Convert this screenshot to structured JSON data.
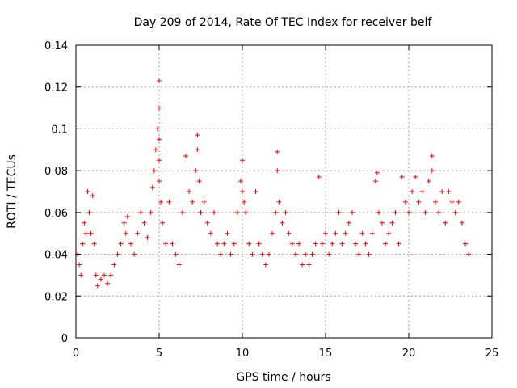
{
  "chart_data": {
    "type": "scatter",
    "title": "Day 209 of 2014, Rate Of TEC Index for receiver belf",
    "xlabel": "GPS time / hours",
    "ylabel": "ROTI / TECUs",
    "xlim": [
      0,
      25
    ],
    "ylim": [
      0,
      0.14
    ],
    "xticks": [
      0,
      5,
      10,
      15,
      20,
      25
    ],
    "yticks": [
      0,
      0.02,
      0.04,
      0.06,
      0.08,
      0.1,
      0.12,
      0.14
    ],
    "xtick_labels": [
      "0",
      "5",
      "10",
      "15",
      "20",
      "25"
    ],
    "ytick_labels": [
      "0",
      "0.02",
      "0.04",
      "0.06",
      "0.08",
      "0.1",
      "0.12",
      "0.14"
    ],
    "grid": true,
    "marker": "+",
    "color": "#ff0000",
    "series": [
      {
        "name": "ROTI",
        "x": [
          0.1,
          0.2,
          0.3,
          0.4,
          0.5,
          0.6,
          0.7,
          0.8,
          0.9,
          1.0,
          1.1,
          1.2,
          1.3,
          1.5,
          1.7,
          1.9,
          2.1,
          2.3,
          2.5,
          2.7,
          2.9,
          3.0,
          3.1,
          3.3,
          3.5,
          3.7,
          3.9,
          4.1,
          4.3,
          4.5,
          4.6,
          4.7,
          4.8,
          4.9,
          5.0,
          5.0,
          5.0,
          5.0,
          5.0,
          5.1,
          5.2,
          5.4,
          5.6,
          5.8,
          6.0,
          6.2,
          6.4,
          6.6,
          6.8,
          7.0,
          7.2,
          7.3,
          7.3,
          7.4,
          7.5,
          7.7,
          7.9,
          8.1,
          8.3,
          8.5,
          8.7,
          8.9,
          9.1,
          9.3,
          9.5,
          9.7,
          9.9,
          10.0,
          10.0,
          10.1,
          10.2,
          10.4,
          10.6,
          10.8,
          11.0,
          11.2,
          11.4,
          11.6,
          11.8,
          12.0,
          12.1,
          12.1,
          12.2,
          12.4,
          12.6,
          12.8,
          13.0,
          13.2,
          13.4,
          13.6,
          13.8,
          14.0,
          14.2,
          14.4,
          14.6,
          14.8,
          15.0,
          15.2,
          15.4,
          15.6,
          15.8,
          16.0,
          16.2,
          16.4,
          16.6,
          16.8,
          17.0,
          17.2,
          17.4,
          17.6,
          17.8,
          18.0,
          18.1,
          18.2,
          18.4,
          18.6,
          18.8,
          19.0,
          19.2,
          19.4,
          19.6,
          19.8,
          20.0,
          20.2,
          20.4,
          20.6,
          20.8,
          21.0,
          21.2,
          21.4,
          21.4,
          21.6,
          21.8,
          22.0,
          22.2,
          22.4,
          22.6,
          22.8,
          23.0,
          23.2,
          23.4,
          23.6
        ],
        "y": [
          0.04,
          0.035,
          0.03,
          0.045,
          0.055,
          0.05,
          0.07,
          0.06,
          0.05,
          0.068,
          0.045,
          0.03,
          0.025,
          0.028,
          0.03,
          0.026,
          0.03,
          0.035,
          0.04,
          0.045,
          0.055,
          0.05,
          0.058,
          0.045,
          0.04,
          0.05,
          0.06,
          0.055,
          0.048,
          0.06,
          0.072,
          0.08,
          0.09,
          0.1,
          0.123,
          0.11,
          0.095,
          0.085,
          0.075,
          0.065,
          0.055,
          0.045,
          0.065,
          0.045,
          0.04,
          0.035,
          0.06,
          0.087,
          0.07,
          0.065,
          0.08,
          0.097,
          0.09,
          0.075,
          0.06,
          0.065,
          0.055,
          0.05,
          0.06,
          0.045,
          0.04,
          0.045,
          0.05,
          0.04,
          0.045,
          0.06,
          0.075,
          0.085,
          0.07,
          0.065,
          0.06,
          0.045,
          0.04,
          0.07,
          0.045,
          0.04,
          0.035,
          0.04,
          0.05,
          0.06,
          0.089,
          0.08,
          0.065,
          0.055,
          0.06,
          0.05,
          0.045,
          0.04,
          0.045,
          0.035,
          0.04,
          0.035,
          0.04,
          0.045,
          0.077,
          0.045,
          0.05,
          0.04,
          0.045,
          0.05,
          0.06,
          0.045,
          0.05,
          0.055,
          0.06,
          0.045,
          0.04,
          0.05,
          0.045,
          0.04,
          0.05,
          0.075,
          0.079,
          0.06,
          0.055,
          0.045,
          0.05,
          0.055,
          0.06,
          0.045,
          0.077,
          0.065,
          0.06,
          0.07,
          0.077,
          0.065,
          0.07,
          0.06,
          0.075,
          0.087,
          0.08,
          0.065,
          0.06,
          0.07,
          0.055,
          0.07,
          0.065,
          0.06,
          0.065,
          0.055,
          0.045,
          0.04
        ]
      }
    ]
  }
}
